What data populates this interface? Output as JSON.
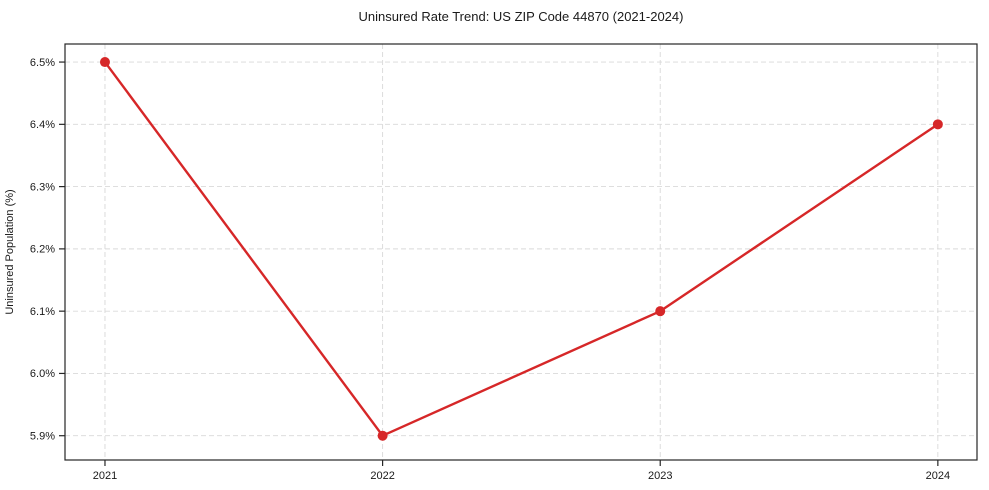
{
  "chart_data": {
    "type": "line",
    "title": "Uninsured Rate Trend: US ZIP Code 44870 (2021-2024)",
    "xlabel": "",
    "ylabel": "Uninsured Population (%)",
    "x": [
      2021,
      2022,
      2023,
      2024
    ],
    "x_tick_labels": [
      "2021",
      "2022",
      "2023",
      "2024"
    ],
    "series": [
      {
        "values": [
          6.5,
          5.9,
          6.1,
          6.4
        ]
      }
    ],
    "y_tick_values": [
      5.9,
      6.0,
      6.1,
      6.2,
      6.3,
      6.4,
      6.5
    ],
    "y_tick_labels": [
      "5.9%",
      "6.0%",
      "6.1%",
      "6.2%",
      "6.3%",
      "6.4%",
      "6.5%"
    ],
    "xlim": [
      2020.856,
      2024.141
    ],
    "ylim": [
      5.861,
      6.529
    ],
    "grid": true,
    "grid_style": "dashed",
    "legend_position": "none",
    "colors": {
      "line": "#d62728",
      "marker": "#d62728",
      "grid": "#d9d9d9",
      "axis": "#262626",
      "background": "#ffffff"
    }
  }
}
